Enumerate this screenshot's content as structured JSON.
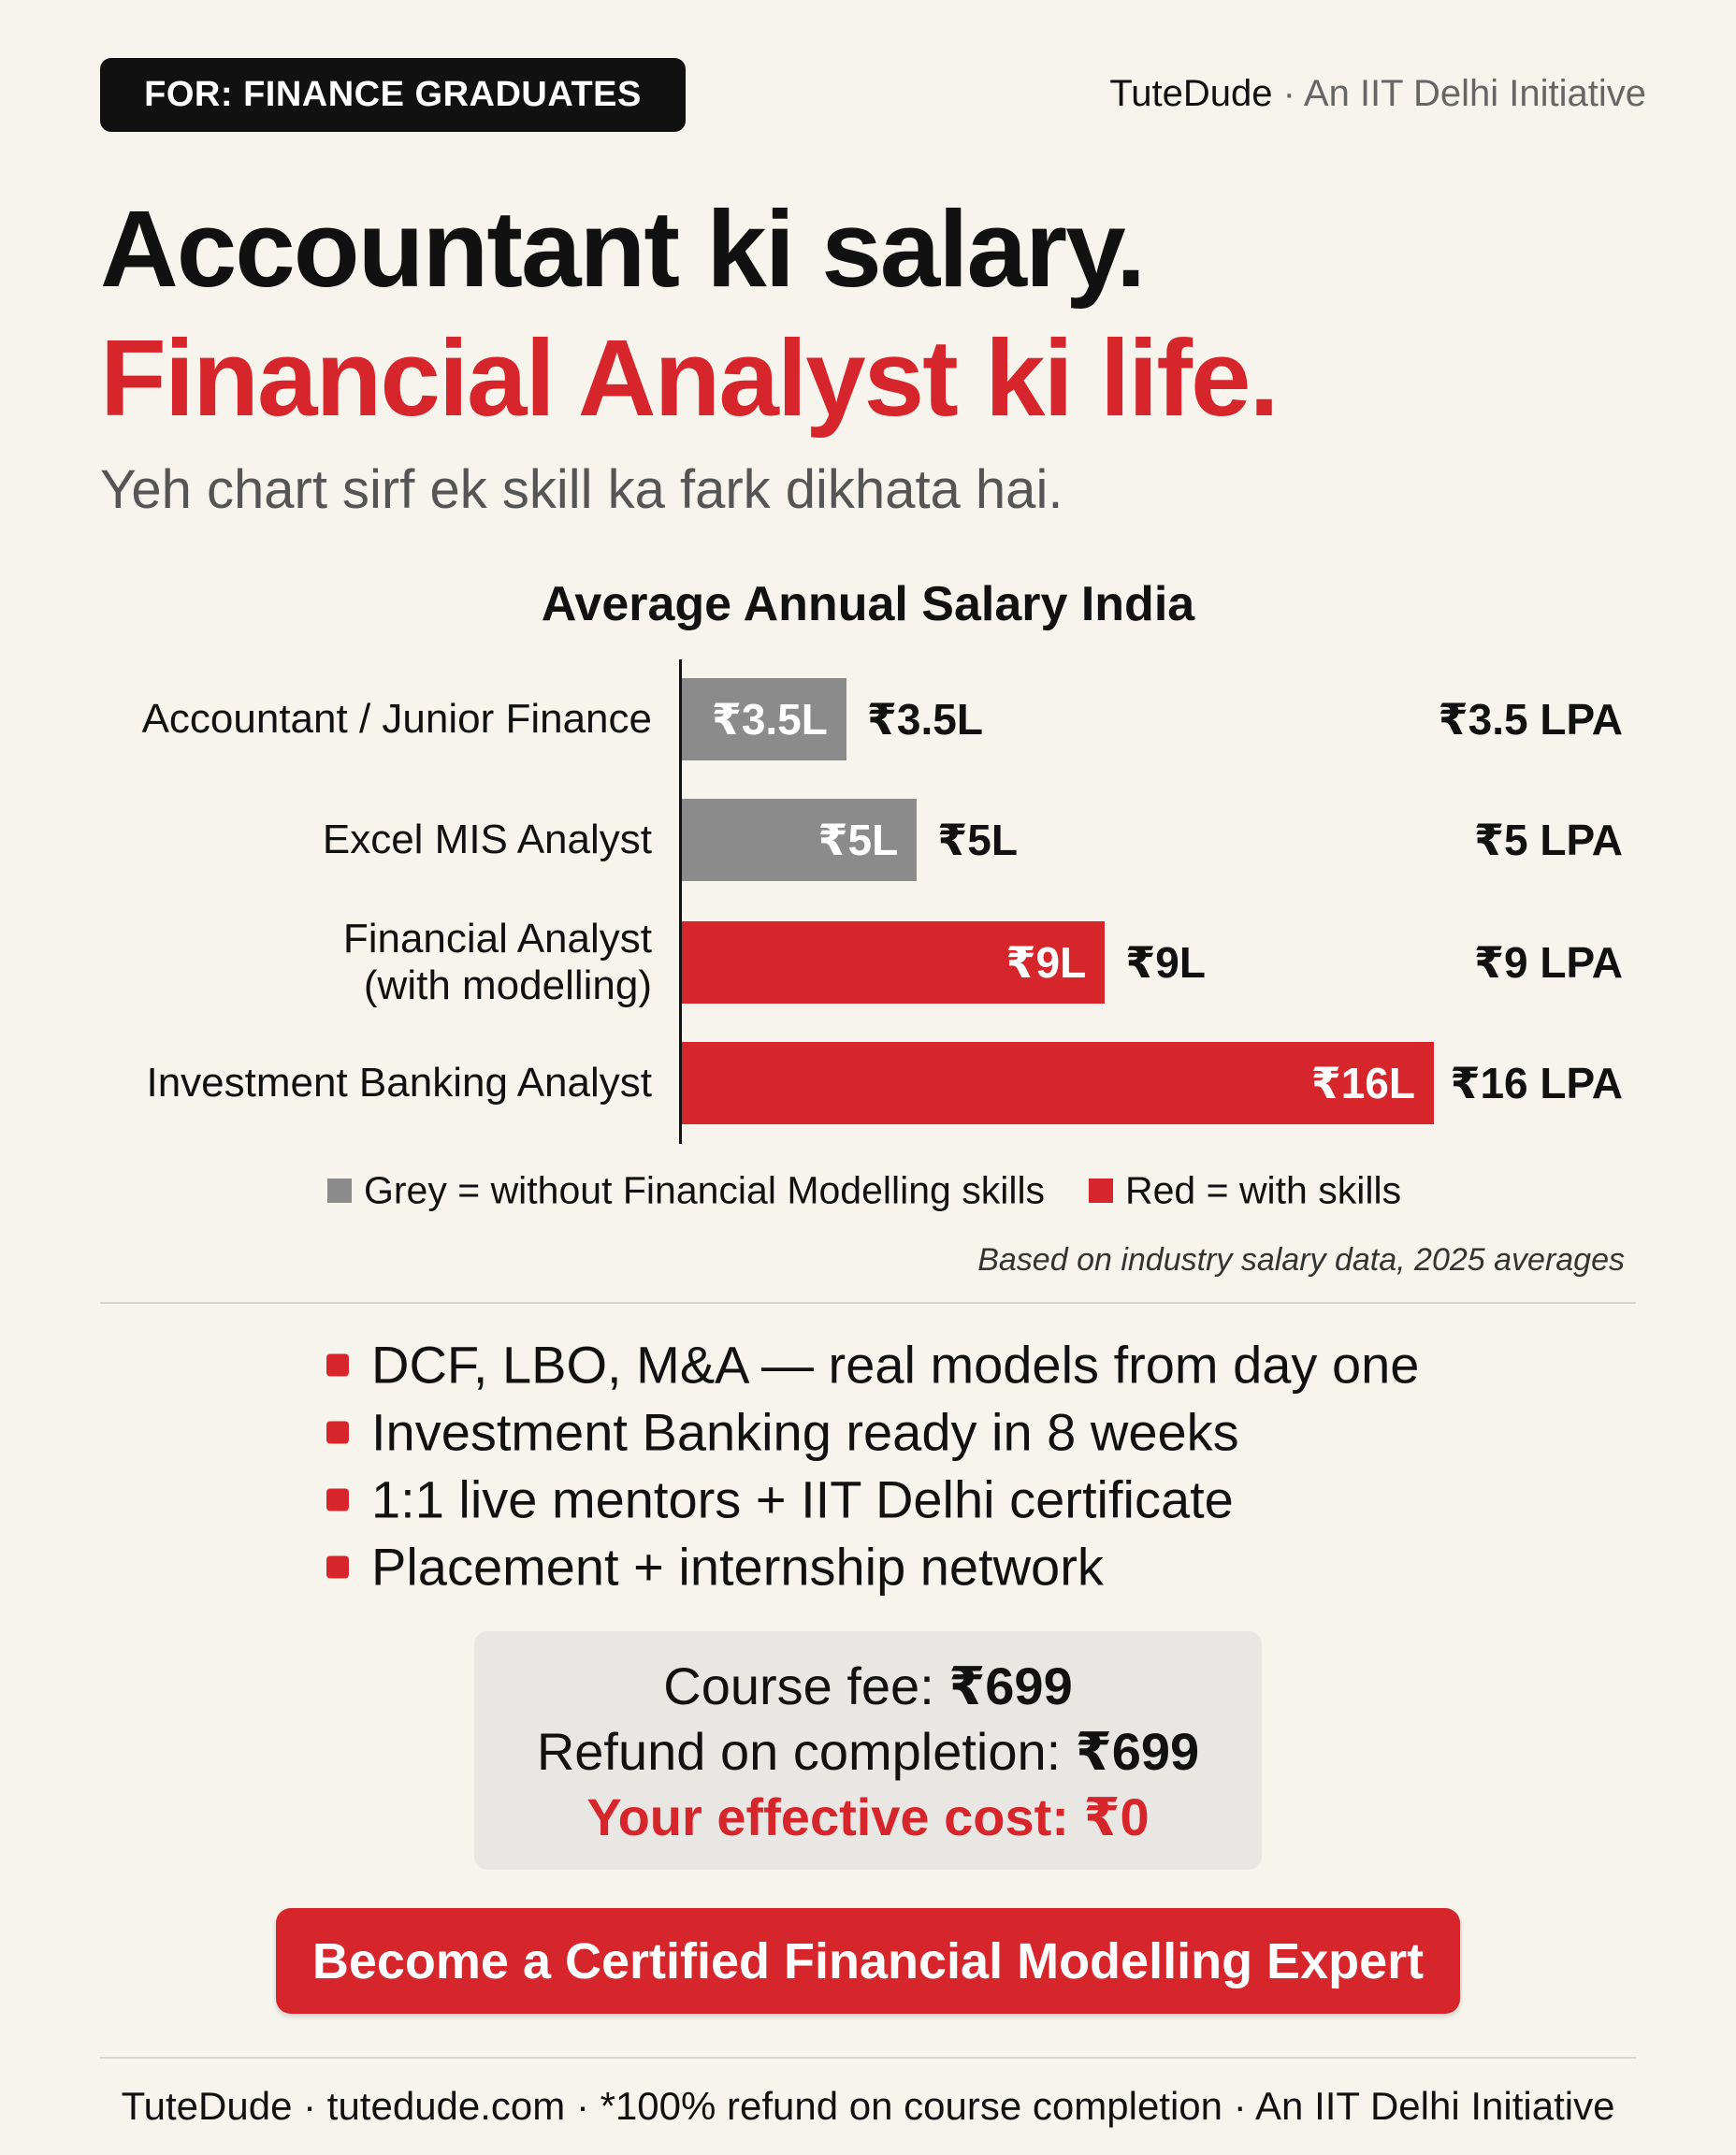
{
  "header": {
    "tag": "FOR: FINANCE GRADUATES",
    "brand": "TuteDude",
    "brand_note": "· An IIT Delhi Initiative"
  },
  "headline": {
    "line1": "Accountant ki salary.",
    "line2": "Financial Analyst ki life.",
    "subtitle": "Yeh chart sirf ek skill ka fark dikhata hai."
  },
  "chart_data": {
    "type": "bar",
    "orientation": "horizontal",
    "title": "Average Annual Salary India",
    "categories": [
      "Accountant / Junior Finance",
      "Excel MIS Analyst",
      "Financial Analyst\n(with modelling)",
      "Investment Banking Analyst"
    ],
    "values": [
      3.5,
      5,
      9,
      16
    ],
    "value_labels": [
      "₹3.5L",
      "₹5L",
      "₹9L",
      "₹16L"
    ],
    "outside_labels": [
      "₹3.5L",
      "₹5L",
      "₹9L",
      null
    ],
    "lpa_labels": [
      "₹3.5 LPA",
      "₹5 LPA",
      "₹9 LPA",
      "₹16 LPA"
    ],
    "colors": [
      "#8b8b8b",
      "#8b8b8b",
      "#d7262b",
      "#d7262b"
    ],
    "legend": [
      {
        "color": "#8b8b8b",
        "label": "Grey = without Financial Modelling skills"
      },
      {
        "color": "#d7262b",
        "label": "Red = with skills"
      }
    ],
    "source": "Based on industry salary data, 2025 averages"
  },
  "bullets": [
    "DCF, LBO, M&A — real models from day one",
    "Investment Banking ready in 8 weeks",
    "1:1 live mentors + IIT Delhi certificate",
    "Placement + internship network"
  ],
  "pricing": {
    "fee_label": "Course fee: ",
    "fee": "₹699",
    "refund_label": "Refund on completion: ",
    "refund": "₹699",
    "effective": "Your effective cost: ₹0"
  },
  "cta": "Become a Certified Financial Modelling Expert",
  "footer": "TuteDude · tutedude.com · *100% refund on course completion · An IIT Delhi Initiative"
}
